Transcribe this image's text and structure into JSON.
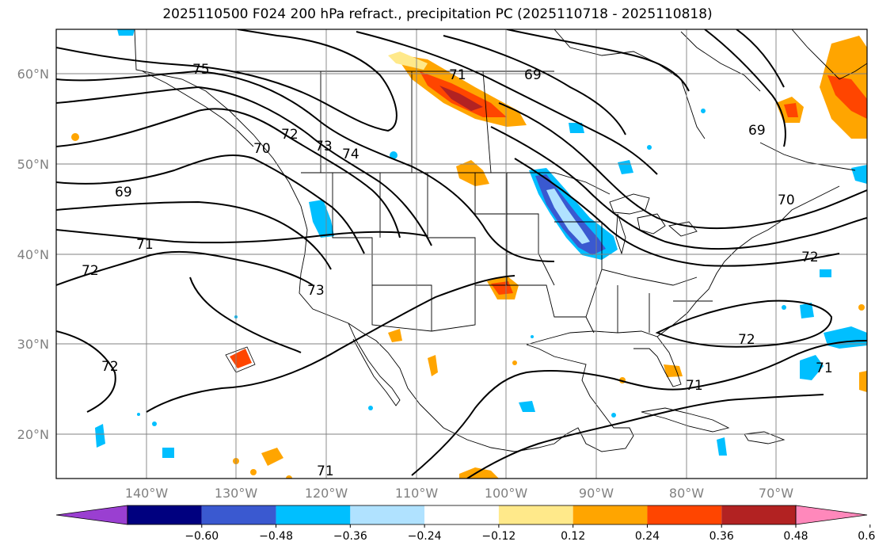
{
  "title": "2025110500 F024 200 hPa refract., precipitation PC (2025110718 - 2025110818)",
  "map": {
    "lat_labels": [
      "60°N",
      "50°N",
      "40°N",
      "30°N",
      "20°N"
    ],
    "lon_labels": [
      "140°W",
      "130°W",
      "120°W",
      "110°W",
      "100°W",
      "90°W",
      "80°W",
      "70°W"
    ],
    "contour_labels": [
      "75",
      "71",
      "69",
      "72",
      "73",
      "74",
      "70",
      "71",
      "72",
      "73",
      "72",
      "71",
      "72",
      "71",
      "69",
      "70",
      "72",
      "71",
      "69"
    ],
    "contour_color": "#000000",
    "grid_color": "#808080"
  },
  "colorbar": {
    "tick_labels": [
      "−0.60",
      "−0.48",
      "−0.36",
      "−0.24",
      "−0.12",
      "0.12",
      "0.24",
      "0.36",
      "0.48",
      "0.60"
    ],
    "colors": [
      "#9a3fd1",
      "#00007f",
      "#3a59d0",
      "#00bfff",
      "#b0e2ff",
      "#ffffff",
      "#ffe98a",
      "#ffa500",
      "#ff4500",
      "#b22222",
      "#ff88bb"
    ]
  }
}
